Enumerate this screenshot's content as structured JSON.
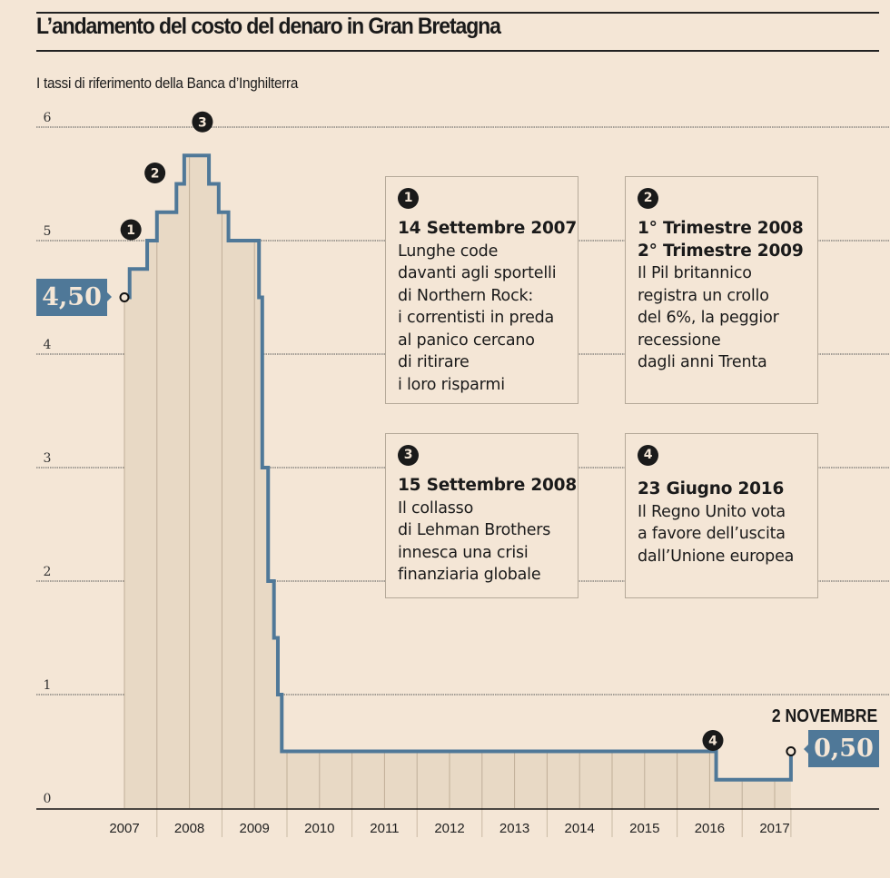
{
  "title": "L’andamento del costo del denaro in Gran Bretagna",
  "subtitle": "I tassi di riferimento della Banca d’Inghilterra",
  "colors": {
    "background": "#f4e6d6",
    "fill": "#e8d9c5",
    "line": "#4f7898",
    "grid": "#555555",
    "box_border": "#b5a999"
  },
  "chart_data": {
    "type": "line",
    "step": true,
    "title": "L’andamento del costo del denaro in Gran Bretagna",
    "subtitle": "I tassi di riferimento della Banca d’Inghilterra",
    "xlabel": "",
    "ylabel": "",
    "ylim": [
      0,
      6
    ],
    "xlim": [
      2007,
      2017.25
    ],
    "yticks": [
      "0",
      "1",
      "2",
      "3",
      "4",
      "5",
      "6"
    ],
    "xticks": [
      "2007",
      "2008",
      "2009",
      "2010",
      "2011",
      "2012",
      "2013",
      "2014",
      "2015",
      "2016",
      "2017"
    ],
    "grid": true,
    "steps": [
      {
        "x": 2007.0,
        "y": 4.5
      },
      {
        "x": 2007.08,
        "y": 4.75
      },
      {
        "x": 2007.35,
        "y": 5.0
      },
      {
        "x": 2007.5,
        "y": 5.25
      },
      {
        "x": 2007.8,
        "y": 5.5
      },
      {
        "x": 2007.92,
        "y": 5.75
      },
      {
        "x": 2008.3,
        "y": 5.5
      },
      {
        "x": 2008.45,
        "y": 5.25
      },
      {
        "x": 2008.6,
        "y": 5.0
      },
      {
        "x": 2009.07,
        "y": 4.5
      },
      {
        "x": 2009.12,
        "y": 3.0
      },
      {
        "x": 2009.21,
        "y": 2.0
      },
      {
        "x": 2009.3,
        "y": 1.5
      },
      {
        "x": 2009.36,
        "y": 1.0
      },
      {
        "x": 2009.42,
        "y": 0.5
      },
      {
        "x": 2016.1,
        "y": 0.25
      },
      {
        "x": 2017.25,
        "y": 0.5
      }
    ],
    "start_label": "4,50",
    "end_label": "0,50",
    "end_date_label": "2 NOVEMBRE",
    "markers": [
      {
        "id": "1",
        "x": 2007.1,
        "y": 5.0
      },
      {
        "id": "2",
        "x": 2007.47,
        "y": 5.5
      },
      {
        "id": "3",
        "x": 2008.2,
        "y": 5.95
      },
      {
        "id": "4",
        "x": 2016.05,
        "y": 0.5
      }
    ]
  },
  "annotations": [
    {
      "num": "1",
      "head": "14 Settembre 2007",
      "body": "Lunghe code\ndavanti agli sportelli\ndi Northern Rock:\ni correntisti in preda\nal panico cercano\ndi ritirare\ni loro risparmi"
    },
    {
      "num": "2",
      "head": "1° Trimestre 2008\n2° Trimestre 2009",
      "body": "Il Pil britannico\nregistra un crollo\ndel 6%, la peggior\nrecessione\ndagli anni Trenta"
    },
    {
      "num": "3",
      "head": "15 Settembre 2008",
      "body": "Il collasso\ndi Lehman Brothers\ninnesca una crisi\nfinanziaria globale"
    },
    {
      "num": "4",
      "head": "23 Giugno 2016",
      "body": "Il Regno Unito vota\na favore dell’uscita\ndall’Unione europea"
    }
  ]
}
